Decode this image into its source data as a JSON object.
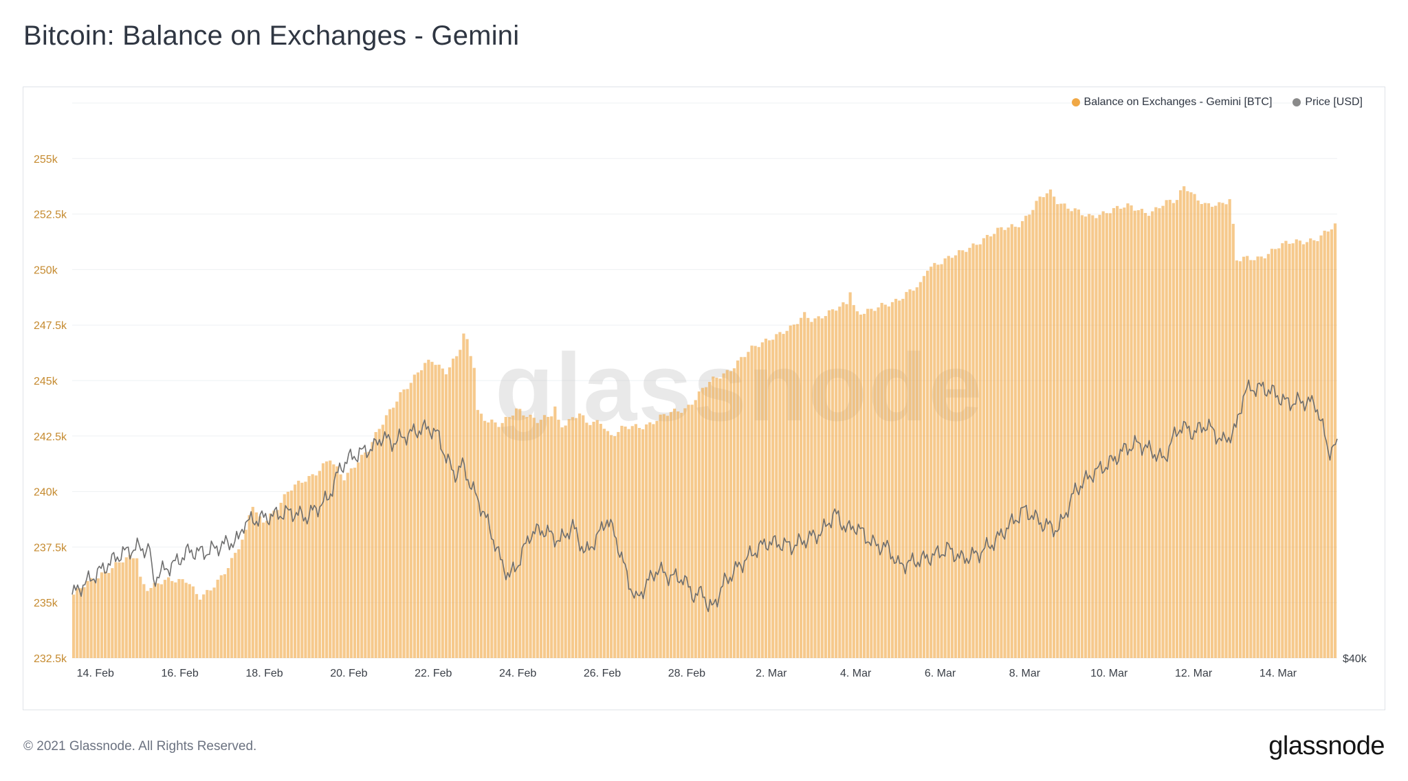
{
  "title": "Bitcoin: Balance on Exchanges - Gemini",
  "legend": {
    "balance": "Balance on Exchanges - Gemini [BTC]",
    "price": "Price [USD]"
  },
  "colors": {
    "balance": "#f0a845",
    "price": "#8a8a8a"
  },
  "footer": "© 2021 Glassnode. All Rights Reserved.",
  "logo": "glassnode",
  "watermark": "glassnode",
  "chart_data": {
    "type": "bar",
    "left_axis": {
      "ticks": [
        "232.5k",
        "235k",
        "237.5k",
        "240k",
        "242.5k",
        "245k",
        "247.5k",
        "250k",
        "252.5k",
        "255k"
      ],
      "tick_values": [
        232500,
        235000,
        237500,
        240000,
        242500,
        245000,
        247500,
        250000,
        252500,
        255000
      ],
      "ylim": [
        232500,
        257500
      ]
    },
    "right_axis": {
      "ticks": [
        "$40k"
      ],
      "tick_values": [
        40000
      ]
    },
    "x_ticks": [
      "14. Feb",
      "16. Feb",
      "18. Feb",
      "20. Feb",
      "22. Feb",
      "24. Feb",
      "26. Feb",
      "28. Feb",
      "2. Mar",
      "4. Mar",
      "6. Mar",
      "8. Mar",
      "10. Mar",
      "12. Mar",
      "14. Mar"
    ],
    "x_tick_days": [
      1.0,
      3.0,
      5.0,
      7.0,
      9.0,
      11.0,
      13.0,
      15.0,
      17.0,
      19.0,
      21.0,
      23.0,
      25.0,
      27.0,
      29.0
    ],
    "x_range_days": [
      0.45,
      30.4
    ],
    "series": [
      {
        "name": "Balance on Exchanges - Gemini [BTC]",
        "kind": "bar",
        "days": [
          0.45,
          0.8,
          1.2,
          1.6,
          2.0,
          2.05,
          2.2,
          2.6,
          3.0,
          3.2,
          3.4,
          3.45,
          3.7,
          4.0,
          4.3,
          4.6,
          4.7,
          4.85,
          5.0,
          5.3,
          5.6,
          6.0,
          6.3,
          6.6,
          6.65,
          6.9,
          7.2,
          7.5,
          7.6,
          7.9,
          8.2,
          8.5,
          8.8,
          9.0,
          9.3,
          9.6,
          9.75,
          9.85,
          10.0,
          10.05,
          10.3,
          10.6,
          11.0,
          11.5,
          11.8,
          11.85,
          12.0,
          12.5,
          12.6,
          13.0,
          13.2,
          13.5,
          14.0,
          14.5,
          15.0,
          15.5,
          16.0,
          16.5,
          17.0,
          17.5,
          17.8,
          18.0,
          18.4,
          18.8,
          18.85,
          19.0,
          19.4,
          19.8,
          20.2,
          20.6,
          20.65,
          21.0,
          21.5,
          22.0,
          22.5,
          22.8,
          23.0,
          23.4,
          23.6,
          23.8,
          24.0,
          24.5,
          25.0,
          25.5,
          26.0,
          26.3,
          26.6,
          26.8,
          27.0,
          27.3,
          27.6,
          27.9,
          28.0,
          28.5,
          29.0,
          29.5,
          30.0,
          30.35
        ],
        "values": [
          235.3,
          235.8,
          236.4,
          236.8,
          237.1,
          236.2,
          235.7,
          235.9,
          236.0,
          236.1,
          235.4,
          235.2,
          235.4,
          236.2,
          237.2,
          238.2,
          239.5,
          238.8,
          238.7,
          239.3,
          240.0,
          240.6,
          241.0,
          241.5,
          241.1,
          240.6,
          241.4,
          241.9,
          242.3,
          243.4,
          244.4,
          244.9,
          245.7,
          246.0,
          245.4,
          246.1,
          247.2,
          246.4,
          245.6,
          243.7,
          243.2,
          242.9,
          243.8,
          243.1,
          243.4,
          244.1,
          243.0,
          243.5,
          243.0,
          243.2,
          242.5,
          242.8,
          243.0,
          243.4,
          243.8,
          244.8,
          245.5,
          246.3,
          247.0,
          247.3,
          248.0,
          247.8,
          248.0,
          248.5,
          249.4,
          248.1,
          248.1,
          248.5,
          248.9,
          249.3,
          250.0,
          250.4,
          250.7,
          251.4,
          251.8,
          252.0,
          252.3,
          253.2,
          253.5,
          253.1,
          252.9,
          252.3,
          252.7,
          252.8,
          252.6,
          252.9,
          253.1,
          253.9,
          253.4,
          252.8,
          252.9,
          253.3,
          250.5,
          250.4,
          251.1,
          251.2,
          251.5,
          251.9
        ]
      },
      {
        "name": "Price [USD]",
        "kind": "line",
        "days": [
          0.45,
          0.8,
          1.2,
          1.6,
          2.0,
          2.3,
          2.35,
          2.6,
          2.9,
          3.2,
          3.6,
          4.0,
          4.4,
          4.5,
          4.8,
          5.2,
          5.6,
          6.0,
          6.2,
          6.5,
          6.8,
          7.0,
          7.3,
          7.6,
          7.8,
          8.0,
          8.4,
          8.7,
          8.9,
          9.1,
          9.3,
          9.5,
          9.7,
          9.9,
          10.2,
          10.4,
          10.6,
          10.8,
          11.0,
          11.3,
          11.6,
          12.0,
          12.3,
          12.6,
          12.9,
          13.1,
          13.3,
          13.6,
          13.8,
          14.0,
          14.3,
          14.6,
          14.9,
          15.2,
          15.4,
          15.5,
          15.6,
          15.9,
          16.2,
          16.6,
          16.9,
          17.2,
          17.5,
          17.8,
          18.2,
          18.5,
          18.8,
          19.0,
          19.4,
          19.8,
          20.0,
          20.4,
          20.8,
          21.2,
          21.5,
          21.9,
          22.3,
          22.6,
          23.0,
          23.4,
          23.8,
          24.2,
          24.6,
          25.0,
          25.4,
          25.7,
          26.0,
          26.3,
          26.5,
          26.7,
          27.0,
          27.3,
          27.7,
          28.0,
          28.2,
          28.5,
          28.8,
          29.2,
          29.6,
          29.9,
          30.2,
          30.35
        ],
        "values": [
          45.0,
          46.0,
          47.1,
          48.2,
          48.7,
          48.5,
          46.1,
          46.9,
          47.5,
          48.4,
          48.3,
          48.9,
          49.3,
          50.6,
          50.9,
          51.2,
          51.5,
          51.1,
          51.7,
          52.5,
          55.0,
          55.7,
          56.2,
          56.6,
          57.5,
          56.9,
          57.6,
          58.0,
          58.1,
          57.6,
          55.8,
          54.4,
          55.2,
          53.5,
          51.4,
          49.6,
          47.6,
          46.4,
          47.4,
          49.8,
          50.1,
          49.2,
          50.4,
          48.2,
          49.6,
          51.0,
          49.7,
          46.3,
          44.5,
          45.6,
          47.0,
          46.4,
          46.3,
          44.8,
          45.3,
          44.0,
          43.9,
          46.0,
          47.1,
          48.4,
          49.1,
          49.0,
          48.8,
          49.3,
          49.9,
          51.4,
          50.1,
          50.4,
          49.0,
          48.6,
          47.3,
          47.6,
          48.0,
          48.6,
          47.8,
          48.2,
          49.2,
          50.3,
          51.7,
          50.6,
          50.1,
          53.2,
          54.5,
          55.3,
          56.5,
          56.9,
          56.3,
          55.6,
          57.2,
          58.3,
          57.7,
          58.4,
          57.0,
          58.0,
          61.0,
          61.3,
          61.1,
          60.1,
          60.2,
          60.0,
          56.3,
          56.6
        ]
      }
    ]
  }
}
